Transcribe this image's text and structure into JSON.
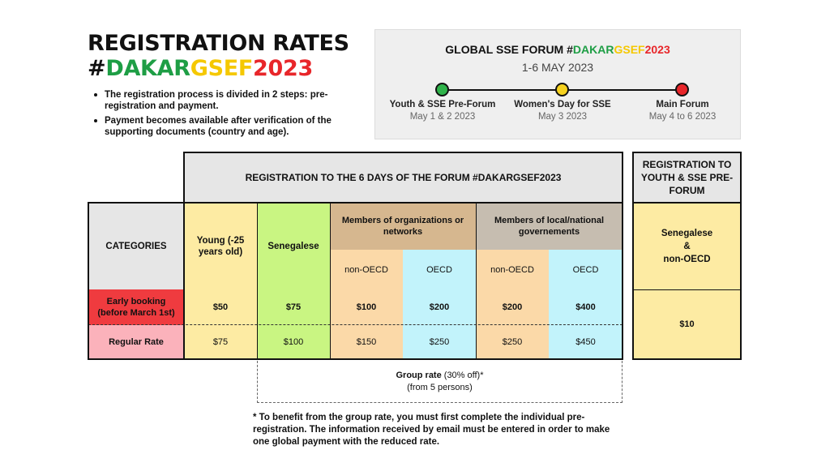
{
  "header": {
    "title_line1": "REGISTRATION RATES",
    "hashtag_hash": "#",
    "hashtag_dakar": "DAKAR",
    "hashtag_gsef": "GSEF",
    "hashtag_year": "2023"
  },
  "bullets": [
    "The registration process is divided in 2 steps: pre-registration and payment.",
    "Payment becomes available after verification of the supporting documents (country and age)."
  ],
  "forum": {
    "title_prefix": "GLOBAL SSE FORUM #",
    "title_dakar": "DAKAR",
    "title_gsef": "GSEF",
    "title_year": "2023",
    "dates": "1-6 MAY 2023",
    "events": [
      {
        "name": "Youth & SSE Pre-Forum",
        "date": "May 1 & 2 2023"
      },
      {
        "name": "Women's Day for SSE",
        "date": "May 3 2023"
      },
      {
        "name": "Main Forum",
        "date": "May 4 to 6 2023"
      }
    ]
  },
  "table": {
    "forum_header": "REGISTRATION TO THE 6 DAYS OF THE FORUM #DAKARGSEF2023",
    "categories_label": "CATEGORIES",
    "young_label": "Young (-25 years old)",
    "senegalese_label": "Senegalese",
    "org_label": "Members of organizations or networks",
    "gov_label": "Members of local/national governements",
    "non_oecd": "non-OECD",
    "oecd": "OECD",
    "early_label": "Early booking (before March 1st)",
    "regular_label": "Regular Rate",
    "early": [
      "$50",
      "$75",
      "$100",
      "$200",
      "$200",
      "$400"
    ],
    "regular": [
      "$75",
      "$100",
      "$150",
      "$250",
      "$250",
      "$450"
    ]
  },
  "preforum": {
    "header": "REGISTRATION TO YOUTH & SSE PRE-FORUM",
    "category_line1": "Senegalese",
    "category_line2": "&",
    "category_line3": "non-OECD",
    "price": "$10"
  },
  "group": {
    "label": "Group rate",
    "discount": "(30% off)*",
    "note": "(from 5 persons)"
  },
  "footnote": "* To benefit from the group rate, you must first complete the individual pre-registration. The information received by email must be entered in order to make one global payment with the reduced rate.",
  "colors": {
    "green": "#1e9e45",
    "yellow": "#f5c800",
    "red": "#e8262a"
  }
}
